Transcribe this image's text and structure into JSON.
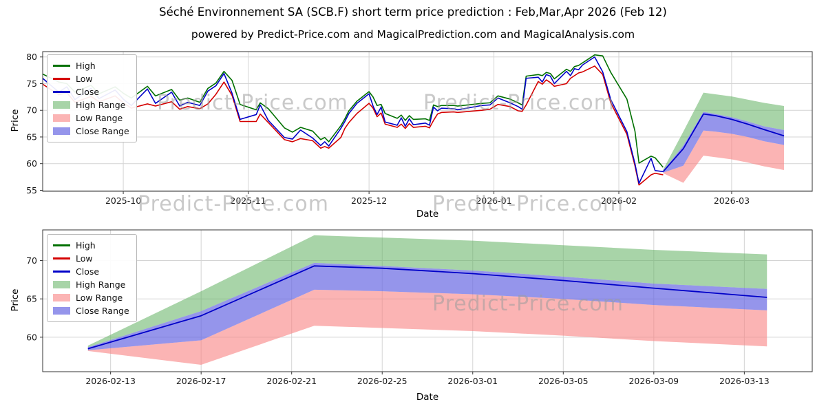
{
  "title": "Séché Environnement SA (SCB.F) short term price prediction : Feb,Mar,Apr 2026 (Feb 12)",
  "subtitle": "powered by Predict-Price.com and MagicalPrediction.com and MagicalAnalysis.com",
  "watermark": "Predict-Price.com",
  "colors": {
    "high": "#007000",
    "low": "#d40000",
    "close": "#0000c8",
    "high_range": "rgba(96,176,96,0.55)",
    "low_range": "rgba(248,130,130,0.6)",
    "close_range": "rgba(104,104,226,0.7)"
  },
  "chart_data": [
    {
      "type": "line",
      "name": "price-history-with-forecast",
      "xlabel": "Date",
      "ylabel": "Price",
      "legend": [
        "High",
        "Low",
        "Close",
        "High Range",
        "Low Range",
        "Close Range"
      ],
      "y_ticks": [
        55,
        60,
        65,
        70,
        75,
        80
      ],
      "x_ticks": [
        {
          "v": "2025-10-01",
          "label": "2025-10"
        },
        {
          "v": "2025-11-01",
          "label": "2025-11"
        },
        {
          "v": "2025-12-01",
          "label": "2025-12"
        },
        {
          "v": "2026-01-01",
          "label": "2026-01"
        },
        {
          "v": "2026-02-01",
          "label": "2026-02"
        },
        {
          "v": "2026-03-01",
          "label": "2026-03"
        }
      ],
      "x_domain": [
        "2025-09-11",
        "2026-03-21"
      ],
      "y_domain": [
        54.8,
        81
      ],
      "historical": {
        "dates": [
          "2025-09-11",
          "2025-09-15",
          "2025-09-17",
          "2025-09-19",
          "2025-09-23",
          "2025-09-25",
          "2025-09-29",
          "2025-10-01",
          "2025-10-03",
          "2025-10-07",
          "2025-10-09",
          "2025-10-13",
          "2025-10-15",
          "2025-10-17",
          "2025-10-20",
          "2025-10-22",
          "2025-10-24",
          "2025-10-26",
          "2025-10-28",
          "2025-10-30",
          "2025-11-03",
          "2025-11-04",
          "2025-11-06",
          "2025-11-10",
          "2025-11-12",
          "2025-11-14",
          "2025-11-17",
          "2025-11-19",
          "2025-11-20",
          "2025-11-21",
          "2025-11-24",
          "2025-11-25",
          "2025-11-26",
          "2025-11-28",
          "2025-12-01",
          "2025-12-02",
          "2025-12-03",
          "2025-12-04",
          "2025-12-05",
          "2025-12-08",
          "2025-12-09",
          "2025-12-10",
          "2025-12-11",
          "2025-12-12",
          "2025-12-15",
          "2025-12-16",
          "2025-12-17",
          "2025-12-18",
          "2025-12-19",
          "2025-12-22",
          "2025-12-23",
          "2025-12-29",
          "2025-12-31",
          "2026-01-02",
          "2026-01-05",
          "2026-01-07",
          "2026-01-08",
          "2026-01-09",
          "2026-01-12",
          "2026-01-13",
          "2026-01-14",
          "2026-01-15",
          "2026-01-16",
          "2026-01-19",
          "2026-01-20",
          "2026-01-21",
          "2026-01-22",
          "2026-01-23",
          "2026-01-26",
          "2026-01-28",
          "2026-01-30",
          "2026-02-03",
          "2026-02-05",
          "2026-02-06",
          "2026-02-09",
          "2026-02-10",
          "2026-02-12"
        ],
        "high": [
          76.8,
          75.3,
          75.0,
          73.4,
          74.7,
          73.1,
          74.4,
          73.2,
          72.3,
          74.5,
          72.7,
          73.9,
          71.9,
          72.3,
          71.5,
          74.1,
          75.1,
          77.3,
          75.6,
          71.1,
          70.1,
          71.4,
          70.3,
          66.7,
          65.9,
          66.8,
          66.1,
          64.5,
          64.9,
          64.1,
          67.1,
          68.4,
          69.9,
          71.7,
          73.5,
          72.5,
          70.9,
          71.1,
          69.4,
          68.5,
          69.1,
          68.1,
          69.0,
          68.3,
          68.4,
          68.1,
          71.0,
          70.7,
          70.9,
          70.9,
          70.8,
          71.3,
          71.4,
          72.7,
          72.1,
          71.4,
          71.0,
          76.4,
          76.7,
          76.5,
          77.1,
          76.9,
          75.9,
          77.7,
          77.3,
          78.2,
          78.4,
          78.9,
          80.4,
          80.2,
          77.1,
          72.1,
          66.1,
          60.1,
          61.4,
          61.1,
          59.3
        ],
        "low": [
          74.9,
          72.9,
          73.3,
          71.5,
          72.6,
          71.6,
          72.7,
          71.4,
          70.4,
          71.2,
          70.8,
          71.6,
          70.2,
          70.7,
          70.3,
          71.2,
          73.0,
          75.3,
          72.8,
          67.9,
          67.9,
          69.3,
          67.7,
          64.5,
          64.1,
          64.7,
          64.3,
          62.9,
          63.2,
          62.9,
          64.9,
          66.6,
          67.7,
          69.4,
          71.3,
          70.4,
          68.8,
          69.5,
          67.4,
          66.8,
          67.4,
          66.6,
          67.5,
          66.8,
          67.0,
          66.7,
          68.1,
          69.3,
          69.6,
          69.7,
          69.6,
          70.0,
          70.2,
          71.1,
          70.7,
          69.9,
          69.8,
          71.0,
          75.4,
          74.9,
          75.7,
          75.2,
          74.5,
          75.0,
          76.0,
          76.5,
          77.0,
          77.2,
          78.3,
          76.7,
          71.4,
          65.5,
          59.6,
          56.0,
          57.9,
          58.2,
          57.9
        ],
        "close": [
          76.0,
          73.4,
          74.4,
          72.0,
          74.1,
          72.2,
          73.8,
          72.1,
          70.9,
          74.0,
          71.3,
          73.4,
          70.8,
          71.5,
          70.9,
          73.6,
          74.6,
          76.9,
          73.2,
          68.3,
          69.2,
          71.0,
          68.1,
          64.9,
          64.6,
          66.3,
          64.8,
          63.4,
          64.1,
          63.3,
          66.6,
          67.9,
          69.4,
          71.3,
          73.1,
          70.8,
          69.2,
          70.6,
          67.8,
          67.2,
          68.6,
          67.0,
          68.4,
          67.3,
          67.6,
          67.2,
          70.6,
          69.9,
          70.4,
          70.3,
          70.1,
          70.9,
          71.0,
          72.3,
          71.4,
          70.7,
          70.2,
          76.0,
          76.2,
          75.3,
          76.7,
          76.4,
          75.0,
          77.3,
          76.5,
          77.8,
          77.6,
          78.5,
          80.0,
          77.2,
          72.0,
          66.0,
          60.0,
          56.3,
          61.0,
          58.7,
          58.5
        ]
      }
    },
    {
      "type": "line",
      "name": "forecast-detail",
      "xlabel": "Date",
      "ylabel": "Price",
      "legend": [
        "High",
        "Low",
        "Close",
        "High Range",
        "Low Range",
        "Close Range"
      ],
      "y_ticks": [
        60,
        65,
        70
      ],
      "x_ticks": [
        {
          "v": "2026-02-13",
          "label": "2026-02-13"
        },
        {
          "v": "2026-02-17",
          "label": "2026-02-17"
        },
        {
          "v": "2026-02-21",
          "label": "2026-02-21"
        },
        {
          "v": "2026-02-25",
          "label": "2026-02-25"
        },
        {
          "v": "2026-03-01",
          "label": "2026-03-01"
        },
        {
          "v": "2026-03-05",
          "label": "2026-03-05"
        },
        {
          "v": "2026-03-09",
          "label": "2026-03-09"
        },
        {
          "v": "2026-03-13",
          "label": "2026-03-13"
        }
      ],
      "x_domain": [
        "2026-02-10",
        "2026-03-16"
      ],
      "y_domain": [
        55.5,
        74
      ],
      "historical": null
    }
  ],
  "forecast": {
    "dates": [
      "2026-02-12",
      "2026-02-17",
      "2026-02-22",
      "2026-02-25",
      "2026-03-01",
      "2026-03-05",
      "2026-03-09",
      "2026-03-14"
    ],
    "close": [
      58.5,
      62.8,
      69.3,
      69.0,
      68.3,
      67.4,
      66.4,
      65.2
    ],
    "close_upper": [
      58.7,
      63.4,
      69.7,
      69.3,
      68.7,
      67.9,
      67.0,
      66.3
    ],
    "close_lower": [
      58.3,
      59.6,
      66.2,
      66.0,
      65.6,
      65.0,
      64.2,
      63.5
    ],
    "high_upper": [
      58.9,
      66.0,
      73.3,
      73.0,
      72.6,
      72.0,
      71.4,
      70.8
    ],
    "low_lower": [
      58.2,
      56.4,
      61.5,
      61.2,
      60.8,
      60.2,
      59.5,
      58.8
    ]
  }
}
